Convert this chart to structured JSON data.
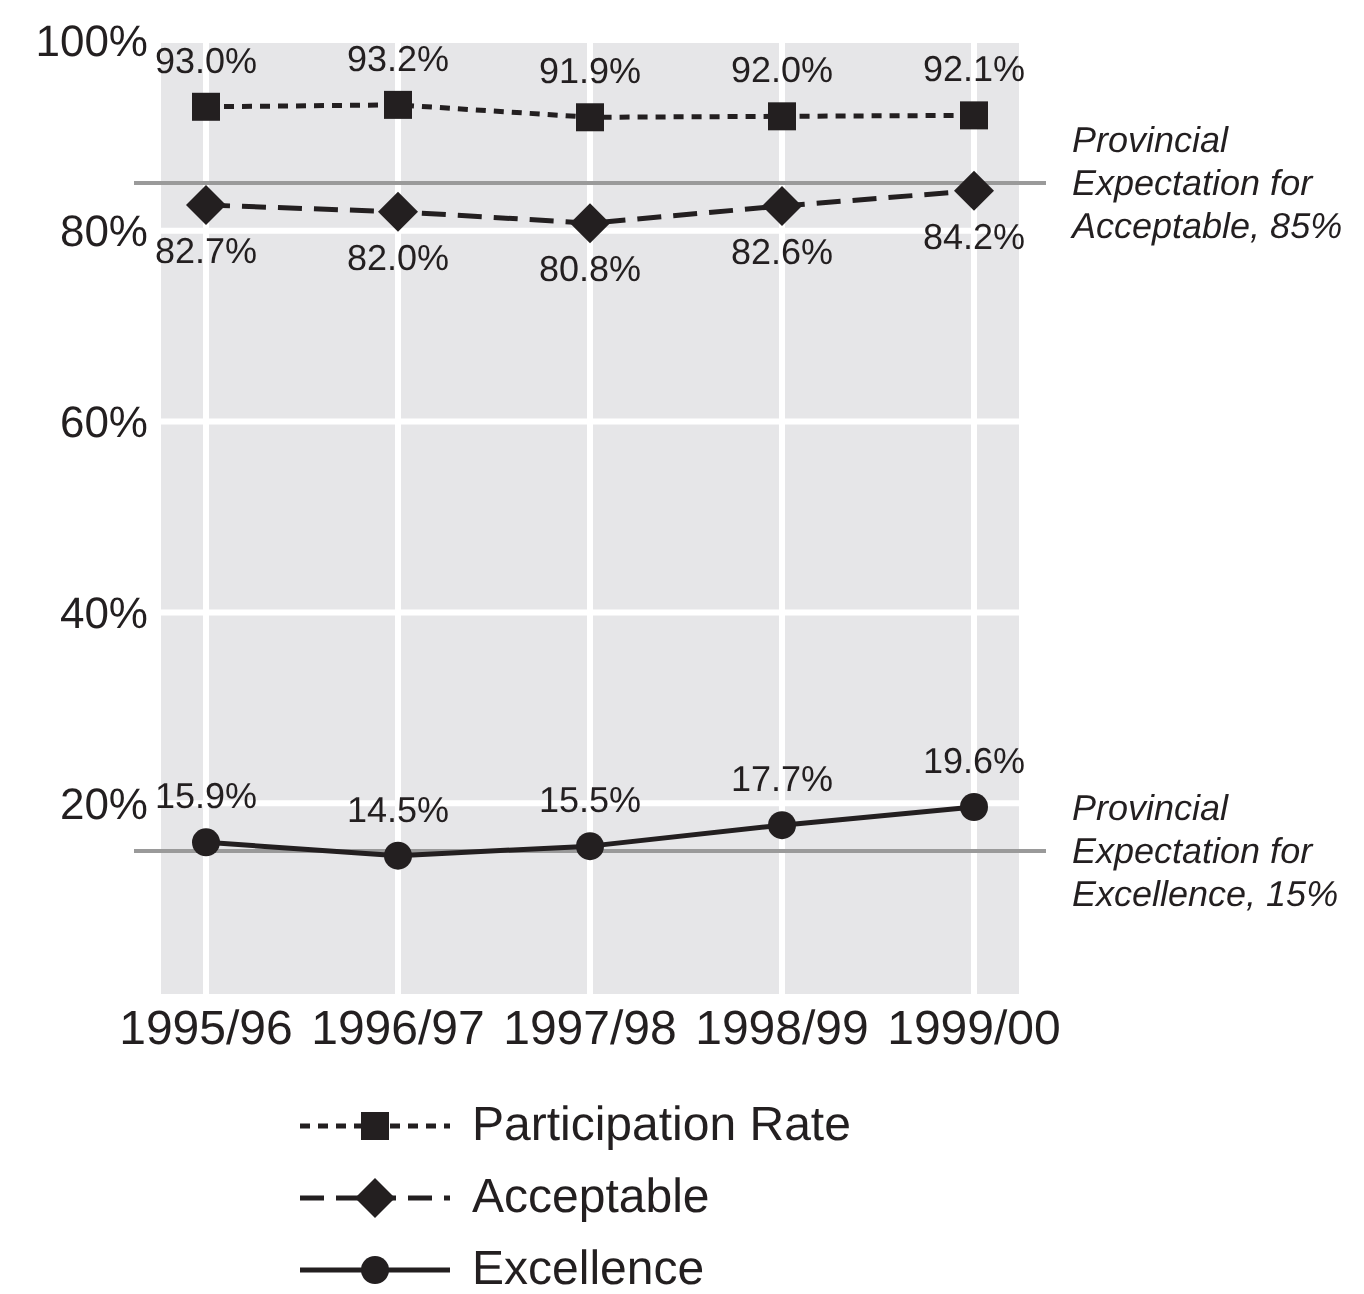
{
  "chart_data": {
    "type": "line",
    "categories": [
      "1995/96",
      "1996/97",
      "1997/98",
      "1998/99",
      "1999/00"
    ],
    "series": [
      {
        "name": "Participation Rate",
        "color": "#231f20",
        "marker": "square",
        "line_style": "dotted",
        "values": [
          93.0,
          93.2,
          91.9,
          92.0,
          92.1
        ],
        "value_labels": [
          "93.0%",
          "93.2%",
          "91.9%",
          "92.0%",
          "92.1%"
        ]
      },
      {
        "name": "Acceptable",
        "color": "#231f20",
        "marker": "diamond",
        "line_style": "dashed",
        "values": [
          82.7,
          82.0,
          80.8,
          82.6,
          84.2
        ],
        "value_labels": [
          "82.7%",
          "82.0%",
          "80.8%",
          "82.6%",
          "84.2%"
        ]
      },
      {
        "name": "Excellence",
        "color": "#231f20",
        "marker": "circle",
        "line_style": "solid",
        "values": [
          15.9,
          14.5,
          15.5,
          17.7,
          19.6
        ],
        "value_labels": [
          "15.9%",
          "14.5%",
          "15.5%",
          "17.7%",
          "19.6%"
        ]
      }
    ],
    "ylim": [
      0,
      100
    ],
    "yticks": [
      {
        "value": 20,
        "label": "20%"
      },
      {
        "value": 40,
        "label": "40%"
      },
      {
        "value": 60,
        "label": "60%"
      },
      {
        "value": 80,
        "label": "80%"
      },
      {
        "value": 100,
        "label": "100%"
      }
    ],
    "grid": true,
    "legend": "bottom",
    "ref_lines": [
      {
        "axis": "y",
        "value": 85,
        "label": "Provincial Expectation for Acceptable, 85%",
        "color": "#9a9a9a"
      },
      {
        "axis": "y",
        "value": 15,
        "label": "Provincial Expectation for Excellence, 15%",
        "color": "#9a9a9a"
      }
    ]
  }
}
